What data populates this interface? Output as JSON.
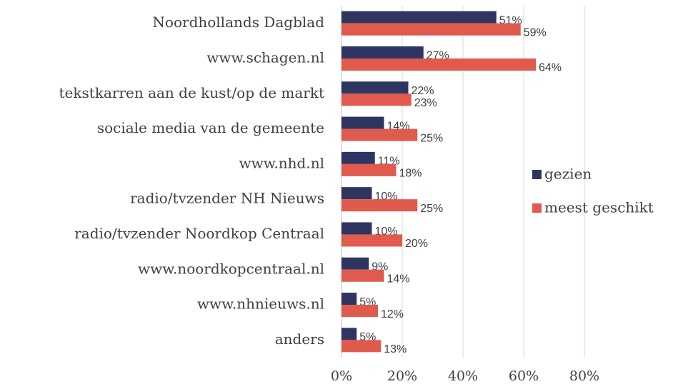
{
  "chart_data": {
    "type": "bar",
    "orientation": "horizontal",
    "categories": [
      "Noordhollands Dagblad",
      "www.schagen.nl",
      "tekstkarren aan de kust/op de markt",
      "sociale media van de gemeente",
      "www.nhd.nl",
      "radio/tvzender NH Nieuws",
      "radio/tvzender Noordkop Centraal",
      "www.noordkopcentraal.nl",
      "www.nhnieuws.nl",
      "anders"
    ],
    "series": [
      {
        "name": "gezien",
        "color": "#2e3561",
        "values": [
          51,
          27,
          22,
          14,
          11,
          10,
          10,
          9,
          5,
          5
        ],
        "value_labels": [
          "51%",
          "27%",
          "22%",
          "14%",
          "11%",
          "10%",
          "10%",
          "9%",
          "5%",
          "5%"
        ]
      },
      {
        "name": "meest geschikt",
        "color": "#e05a4e",
        "values": [
          59,
          64,
          23,
          25,
          18,
          25,
          20,
          14,
          12,
          13
        ],
        "value_labels": [
          "59%",
          "64%",
          "23%",
          "25%",
          "18%",
          "25%",
          "20%",
          "14%",
          "12%",
          "13%"
        ]
      }
    ],
    "xlim": [
      0,
      80
    ],
    "xticks": [
      {
        "value": 0,
        "label": "0%"
      },
      {
        "value": 20,
        "label": "20%"
      },
      {
        "value": 40,
        "label": "40%"
      },
      {
        "value": 60,
        "label": "60%"
      },
      {
        "value": 80,
        "label": "80%"
      }
    ],
    "grid": true,
    "legend": "right"
  }
}
